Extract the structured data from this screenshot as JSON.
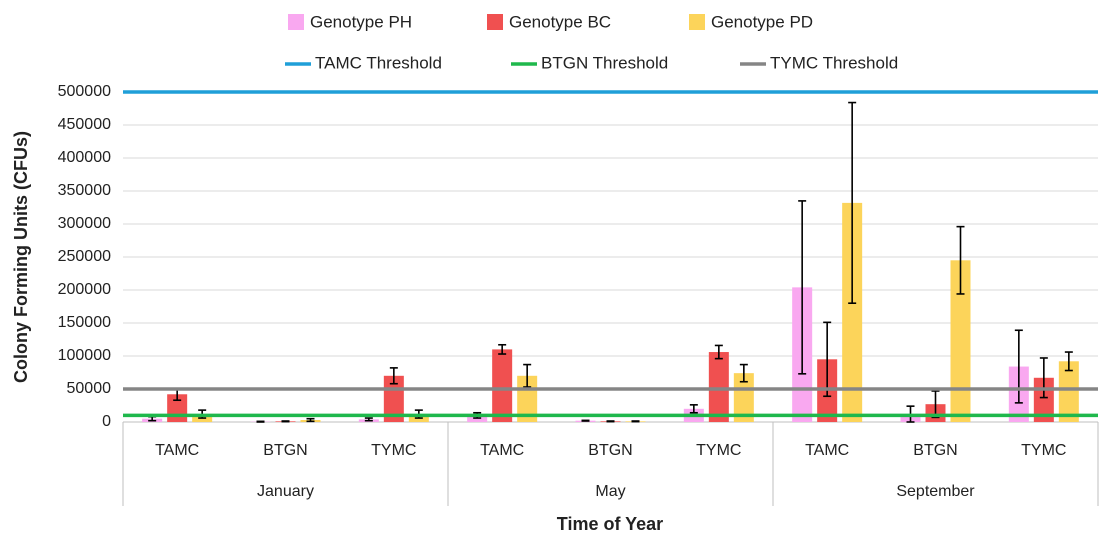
{
  "chart_data": {
    "type": "bar",
    "x_label": "Time of Year",
    "y_label": "Colony Forming Units (CFUs)",
    "categories": [
      "TAMC",
      "BTGN",
      "TYMC",
      "TAMC",
      "BTGN",
      "TYMC",
      "TAMC",
      "BTGN",
      "TYMC"
    ],
    "category_groups": [
      "January",
      "May",
      "September"
    ],
    "series": [
      {
        "name": "Genotype PH",
        "color": "#f9a8f0",
        "values": [
          5000,
          500,
          4000,
          10000,
          2000,
          20000,
          204000,
          10000,
          84000
        ],
        "errors": [
          3000,
          500,
          2000,
          4000,
          500,
          6000,
          131000,
          14000,
          55000
        ]
      },
      {
        "name": "Genotype BC",
        "color": "#f05050",
        "values": [
          42000,
          1000,
          70000,
          110000,
          1000,
          106000,
          95000,
          27000,
          67000
        ],
        "errors": [
          9000,
          500,
          12000,
          7000,
          500,
          10000,
          56000,
          20000,
          30000
        ]
      },
      {
        "name": "Genotype PD",
        "color": "#fcd45a",
        "values": [
          12000,
          3000,
          12000,
          70000,
          1000,
          74000,
          332000,
          245000,
          92000
        ],
        "errors": [
          6000,
          2000,
          6000,
          17000,
          500,
          13000,
          152000,
          51000,
          14000
        ]
      }
    ],
    "thresholds": [
      {
        "name": "TAMC Threshold",
        "color": "#1f9fd8",
        "value": 500000
      },
      {
        "name": "BTGN Threshold",
        "color": "#1fb84c",
        "value": 10000
      },
      {
        "name": "TYMC Threshold",
        "color": "#858585",
        "value": 50000
      }
    ],
    "ylim": [
      0,
      500000
    ],
    "yticks": [
      0,
      50000,
      100000,
      150000,
      200000,
      250000,
      300000,
      350000,
      400000,
      450000,
      500000
    ],
    "grid": true
  }
}
